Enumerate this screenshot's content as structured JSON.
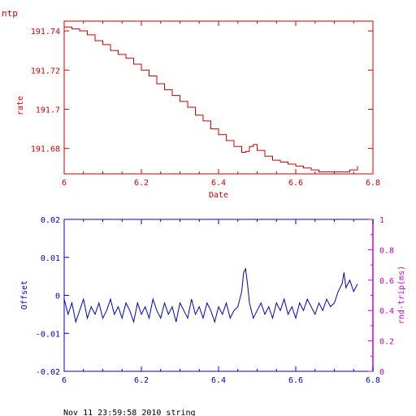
{
  "page_title": "ntp",
  "footer_text": "Nov 11 23:59:58 2010 string",
  "colors": {
    "top": "#cc0000",
    "offset": "#0000cc",
    "rtt": "#cc00cc"
  },
  "chart_data": [
    {
      "type": "line",
      "title": "",
      "xlabel": "Date",
      "ylabel": "rate",
      "xlim": [
        6.0,
        6.8
      ],
      "ylim": [
        191.667,
        191.745
      ],
      "x_ticks": [
        "6",
        "6.2",
        "6.4",
        "6.6",
        "6.8"
      ],
      "y_ticks": [
        "191.74",
        "191.72",
        "191.7",
        "191.68"
      ],
      "series": [
        {
          "x": [
            6.0,
            6.02,
            6.04,
            6.06,
            6.08,
            6.1,
            6.12,
            6.14,
            6.16,
            6.18,
            6.2,
            6.22,
            6.24,
            6.26,
            6.28,
            6.3,
            6.32,
            6.34,
            6.36,
            6.38,
            6.4,
            6.42,
            6.44,
            6.46,
            6.47,
            6.48,
            6.49,
            6.5,
            6.52,
            6.54,
            6.56,
            6.58,
            6.6,
            6.62,
            6.64,
            6.66,
            6.68,
            6.7,
            6.72,
            6.74,
            6.76
          ],
          "y": [
            191.742,
            191.741,
            191.74,
            191.738,
            191.735,
            191.733,
            191.73,
            191.728,
            191.726,
            191.723,
            191.72,
            191.717,
            191.713,
            191.71,
            191.707,
            191.704,
            191.701,
            191.697,
            191.694,
            191.69,
            191.687,
            191.684,
            191.681,
            191.678,
            191.6785,
            191.681,
            191.682,
            191.679,
            191.676,
            191.674,
            191.673,
            191.672,
            191.671,
            191.67,
            191.669,
            191.668,
            191.668,
            191.668,
            191.668,
            191.669,
            191.671
          ]
        }
      ]
    },
    {
      "type": "line",
      "title": "",
      "xlabel": "",
      "ylabel": "Offset",
      "y2label": "rnd-trip(ms)",
      "xlim": [
        6.0,
        6.8
      ],
      "ylim": [
        -0.02,
        0.02
      ],
      "y2lim": [
        0,
        1
      ],
      "x_ticks": [
        "6",
        "6.2",
        "6.4",
        "6.6",
        "6.8"
      ],
      "y_ticks": [
        "0.02",
        "0.01",
        "0",
        "-0.01",
        "-0.02"
      ],
      "y2_ticks": [
        "1",
        "0.8",
        "0.6",
        "0.4",
        "0.2",
        "0"
      ],
      "series": [
        {
          "name": "Offset",
          "x": [
            6.0,
            6.01,
            6.02,
            6.03,
            6.04,
            6.05,
            6.06,
            6.07,
            6.08,
            6.09,
            6.1,
            6.11,
            6.12,
            6.13,
            6.14,
            6.15,
            6.16,
            6.17,
            6.18,
            6.19,
            6.2,
            6.21,
            6.22,
            6.23,
            6.24,
            6.25,
            6.26,
            6.27,
            6.28,
            6.29,
            6.3,
            6.31,
            6.32,
            6.33,
            6.34,
            6.35,
            6.36,
            6.37,
            6.38,
            6.39,
            6.4,
            6.41,
            6.42,
            6.43,
            6.44,
            6.45,
            6.46,
            6.465,
            6.47,
            6.475,
            6.48,
            6.49,
            6.5,
            6.51,
            6.52,
            6.53,
            6.54,
            6.55,
            6.56,
            6.57,
            6.58,
            6.59,
            6.6,
            6.61,
            6.62,
            6.63,
            6.64,
            6.65,
            6.66,
            6.67,
            6.68,
            6.69,
            6.7,
            6.71,
            6.72,
            6.725,
            6.73,
            6.74,
            6.75,
            6.76
          ],
          "y": [
            -0.001,
            -0.005,
            -0.002,
            -0.007,
            -0.004,
            -0.001,
            -0.006,
            -0.003,
            -0.005,
            -0.002,
            -0.006,
            -0.004,
            -0.001,
            -0.005,
            -0.003,
            -0.006,
            -0.002,
            -0.004,
            -0.007,
            -0.002,
            -0.005,
            -0.003,
            -0.006,
            -0.001,
            -0.004,
            -0.006,
            -0.002,
            -0.005,
            -0.003,
            -0.007,
            -0.002,
            -0.004,
            -0.006,
            -0.001,
            -0.005,
            -0.003,
            -0.006,
            -0.002,
            -0.004,
            -0.007,
            -0.003,
            -0.005,
            -0.002,
            -0.006,
            -0.004,
            -0.003,
            0.001,
            0.006,
            0.007,
            0.003,
            -0.002,
            -0.006,
            -0.004,
            -0.002,
            -0.005,
            -0.003,
            -0.006,
            -0.002,
            -0.004,
            -0.001,
            -0.005,
            -0.003,
            -0.006,
            -0.002,
            -0.004,
            -0.001,
            -0.003,
            -0.005,
            -0.002,
            -0.004,
            -0.001,
            -0.003,
            -0.002,
            0.001,
            0.003,
            0.006,
            0.002,
            0.004,
            0.001,
            0.003
          ]
        }
      ]
    }
  ]
}
